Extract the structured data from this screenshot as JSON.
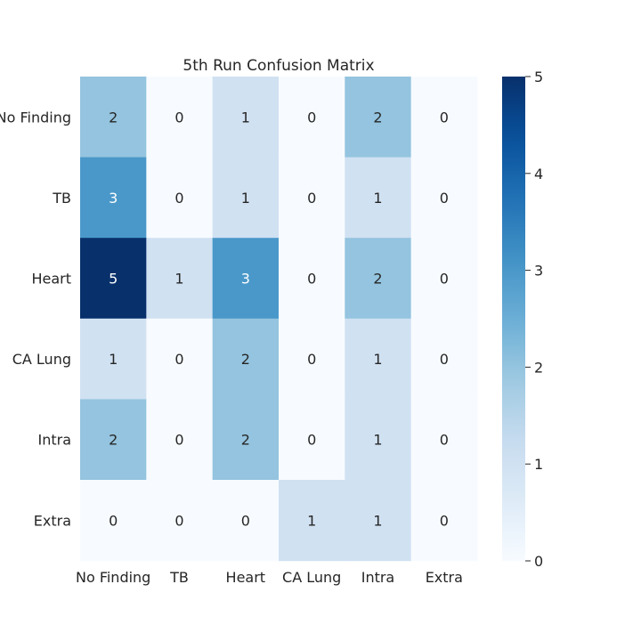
{
  "chart_data": {
    "type": "heatmap",
    "title": "5th Run Confusion Matrix",
    "row_labels": [
      "No Finding",
      "TB",
      "Heart",
      "CA Lung",
      "Intra",
      "Extra"
    ],
    "col_labels": [
      "No Finding",
      "TB",
      "Heart",
      "CA Lung",
      "Intra",
      "Extra"
    ],
    "values": [
      [
        2,
        0,
        1,
        0,
        2,
        0
      ],
      [
        3,
        0,
        1,
        0,
        1,
        0
      ],
      [
        5,
        1,
        3,
        0,
        2,
        0
      ],
      [
        1,
        0,
        2,
        0,
        1,
        0
      ],
      [
        2,
        0,
        2,
        0,
        1,
        0
      ],
      [
        0,
        0,
        0,
        1,
        1,
        0
      ]
    ],
    "colorbar": {
      "min": 0,
      "max": 5,
      "ticks": [
        0,
        1,
        2,
        3,
        4,
        5
      ],
      "colormap": "Blues",
      "low_color": "#f7fbff",
      "high_color": "#08306b"
    },
    "grid": false
  }
}
